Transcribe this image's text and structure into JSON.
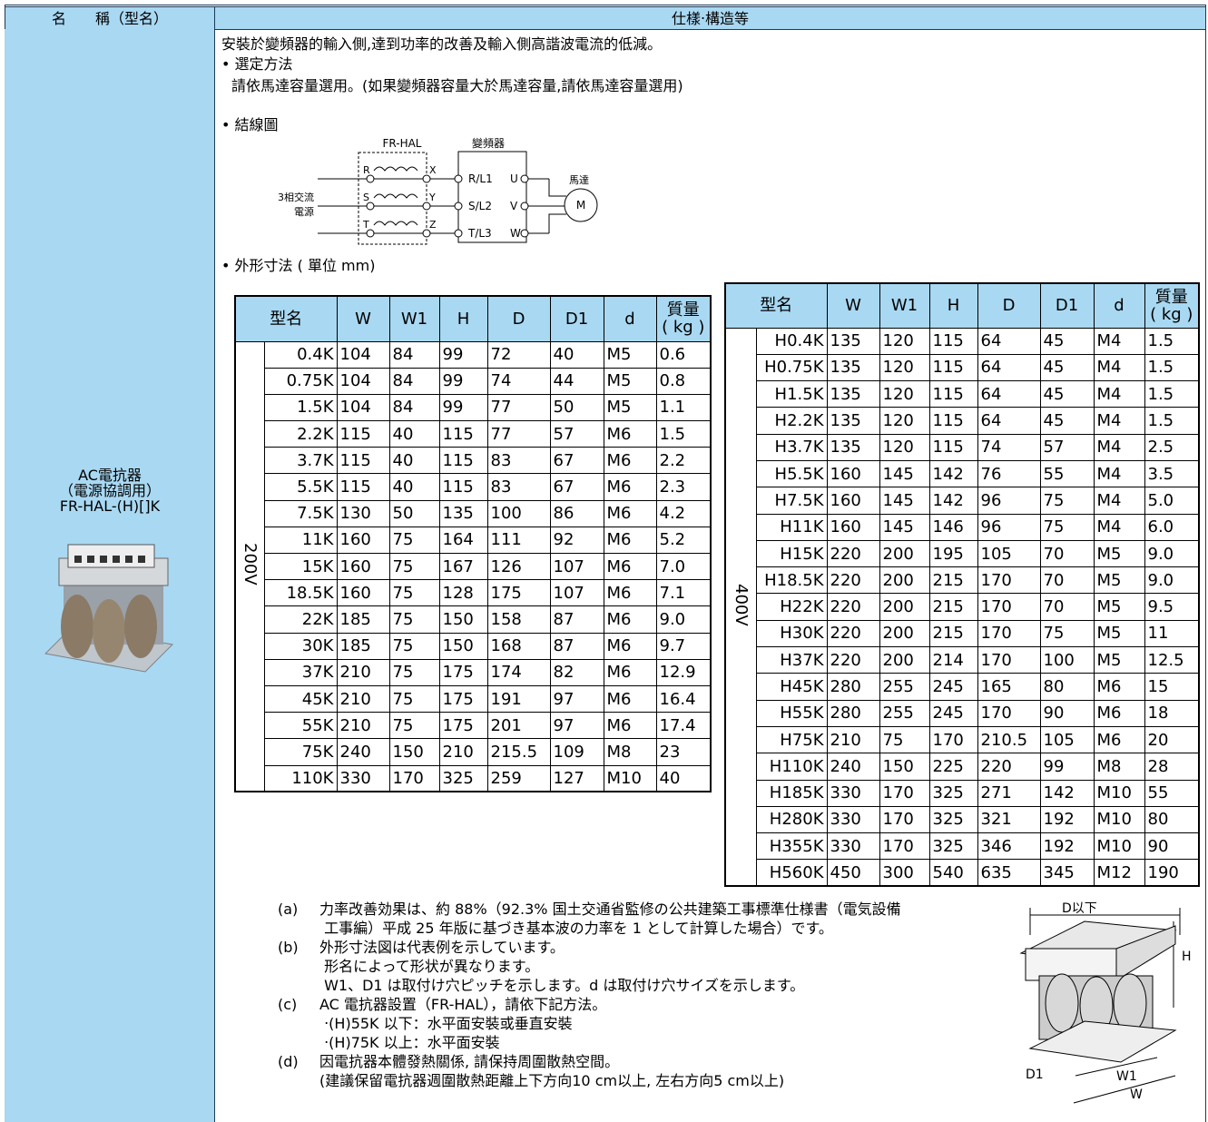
{
  "header": {
    "name_col": "名　　稱（型名）",
    "spec_col": "仕樣‧構造等"
  },
  "model": {
    "lines": [
      "AC電抗器",
      "（電源協調用）",
      "FR-HAL-(H)[]K"
    ]
  },
  "intro": [
    "安裝於變頻器的輸入側,達到功率的改善及輸入側高諧波電流的低減。",
    "• 選定方法",
    "請依馬達容量選用。(如果變頻器容量大於馬達容量,請依馬達容量選用)",
    "• 結線圖"
  ],
  "wiring": {
    "reactor": "FR-HAL",
    "inverter": "變頻器",
    "motor": "馬達",
    "motor_symbol": "M",
    "source": [
      "3相交流",
      "電源"
    ],
    "in_terms": [
      "R",
      "S",
      "T"
    ],
    "out_terms": [
      "X",
      "Y",
      "Z"
    ],
    "inv_in": [
      "R/L1",
      "S/L2",
      "T/L3"
    ],
    "inv_out": [
      "U",
      "V",
      "W"
    ]
  },
  "dims_title": "• 外形寸法 ( 單位 mm)",
  "columns": [
    "型名",
    "W",
    "W1",
    "H",
    "D",
    "D1",
    "d"
  ],
  "mass_header": [
    "質量",
    "( kg )"
  ],
  "table_200": {
    "group": "200V",
    "rows": [
      [
        "0.4K",
        "104",
        "84",
        "99",
        "72",
        "40",
        "M5",
        "0.6"
      ],
      [
        "0.75K",
        "104",
        "84",
        "99",
        "74",
        "44",
        "M5",
        "0.8"
      ],
      [
        "1.5K",
        "104",
        "84",
        "99",
        "77",
        "50",
        "M5",
        "1.1"
      ],
      [
        "2.2K",
        "115",
        "40",
        "115",
        "77",
        "57",
        "M6",
        "1.5"
      ],
      [
        "3.7K",
        "115",
        "40",
        "115",
        "83",
        "67",
        "M6",
        "2.2"
      ],
      [
        "5.5K",
        "115",
        "40",
        "115",
        "83",
        "67",
        "M6",
        "2.3"
      ],
      [
        "7.5K",
        "130",
        "50",
        "135",
        "100",
        "86",
        "M6",
        "4.2"
      ],
      [
        "11K",
        "160",
        "75",
        "164",
        "111",
        "92",
        "M6",
        "5.2"
      ],
      [
        "15K",
        "160",
        "75",
        "167",
        "126",
        "107",
        "M6",
        "7.0"
      ],
      [
        "18.5K",
        "160",
        "75",
        "128",
        "175",
        "107",
        "M6",
        "7.1"
      ],
      [
        "22K",
        "185",
        "75",
        "150",
        "158",
        "87",
        "M6",
        "9.0"
      ],
      [
        "30K",
        "185",
        "75",
        "150",
        "168",
        "87",
        "M6",
        "9.7"
      ],
      [
        "37K",
        "210",
        "75",
        "175",
        "174",
        "82",
        "M6",
        "12.9"
      ],
      [
        "45K",
        "210",
        "75",
        "175",
        "191",
        "97",
        "M6",
        "16.4"
      ],
      [
        "55K",
        "210",
        "75",
        "175",
        "201",
        "97",
        "M6",
        "17.4"
      ],
      [
        "75K",
        "240",
        "150",
        "210",
        "215.5",
        "109",
        "M8",
        "23"
      ],
      [
        "110K",
        "330",
        "170",
        "325",
        "259",
        "127",
        "M10",
        "40"
      ]
    ]
  },
  "table_400": {
    "group": "400V",
    "rows": [
      [
        "H0.4K",
        "135",
        "120",
        "115",
        "64",
        "45",
        "M4",
        "1.5"
      ],
      [
        "H0.75K",
        "135",
        "120",
        "115",
        "64",
        "45",
        "M4",
        "1.5"
      ],
      [
        "H1.5K",
        "135",
        "120",
        "115",
        "64",
        "45",
        "M4",
        "1.5"
      ],
      [
        "H2.2K",
        "135",
        "120",
        "115",
        "64",
        "45",
        "M4",
        "1.5"
      ],
      [
        "H3.7K",
        "135",
        "120",
        "115",
        "74",
        "57",
        "M4",
        "2.5"
      ],
      [
        "H5.5K",
        "160",
        "145",
        "142",
        "76",
        "55",
        "M4",
        "3.5"
      ],
      [
        "H7.5K",
        "160",
        "145",
        "142",
        "96",
        "75",
        "M4",
        "5.0"
      ],
      [
        "H11K",
        "160",
        "145",
        "146",
        "96",
        "75",
        "M4",
        "6.0"
      ],
      [
        "H15K",
        "220",
        "200",
        "195",
        "105",
        "70",
        "M5",
        "9.0"
      ],
      [
        "H18.5K",
        "220",
        "200",
        "215",
        "170",
        "70",
        "M5",
        "9.0"
      ],
      [
        "H22K",
        "220",
        "200",
        "215",
        "170",
        "70",
        "M5",
        "9.5"
      ],
      [
        "H30K",
        "220",
        "200",
        "215",
        "170",
        "75",
        "M5",
        "11"
      ],
      [
        "H37K",
        "220",
        "200",
        "214",
        "170",
        "100",
        "M5",
        "12.5"
      ],
      [
        "H45K",
        "280",
        "255",
        "245",
        "165",
        "80",
        "M6",
        "15"
      ],
      [
        "H55K",
        "280",
        "255",
        "245",
        "170",
        "90",
        "M6",
        "18"
      ],
      [
        "H75K",
        "210",
        "75",
        "170",
        "210.5",
        "105",
        "M6",
        "20"
      ],
      [
        "H110K",
        "240",
        "150",
        "225",
        "220",
        "99",
        "M8",
        "28"
      ],
      [
        "H185K",
        "330",
        "170",
        "325",
        "271",
        "142",
        "M10",
        "55"
      ],
      [
        "H280K",
        "330",
        "170",
        "325",
        "321",
        "192",
        "M10",
        "80"
      ],
      [
        "H355K",
        "330",
        "170",
        "325",
        "346",
        "192",
        "M10",
        "90"
      ],
      [
        "H560K",
        "450",
        "300",
        "540",
        "635",
        "345",
        "M12",
        "190"
      ]
    ]
  },
  "notes": [
    {
      "label": "(a)",
      "lines": [
        "力率改善効果は、約 88%（92.3% 国土交通省監修の公共建築工事標準仕様書（電気設備",
        " 工事編）平成 25 年版に基づき基本波の力率を 1 として計算した場合）です。"
      ]
    },
    {
      "label": "(b)",
      "lines": [
        "外形寸法図は代表例を示しています。",
        " 形名によって形状が異なります。",
        " W1、D1 は取付け穴ピッチを示します。d は取付け穴サイズを示します。"
      ]
    },
    {
      "label": "(c)",
      "lines": [
        "AC 電抗器設置（FR-HAL），請依下記方法。",
        " ‧(H)55K 以下：水平面安裝或垂直安裝",
        " ‧(H)75K 以上：水平面安裝"
      ]
    },
    {
      "label": "(d)",
      "lines": [
        "因電抗器本體發熱關係, 請保持周圍散熱空間。",
        "(建議保留電抗器週圍散熱距離上下方向10 cm以上, 左右方向5 cm以上)"
      ]
    }
  ],
  "figure": {
    "depth": "D以下",
    "height": "H",
    "d1": "D1",
    "w1": "W1",
    "w": "W"
  }
}
